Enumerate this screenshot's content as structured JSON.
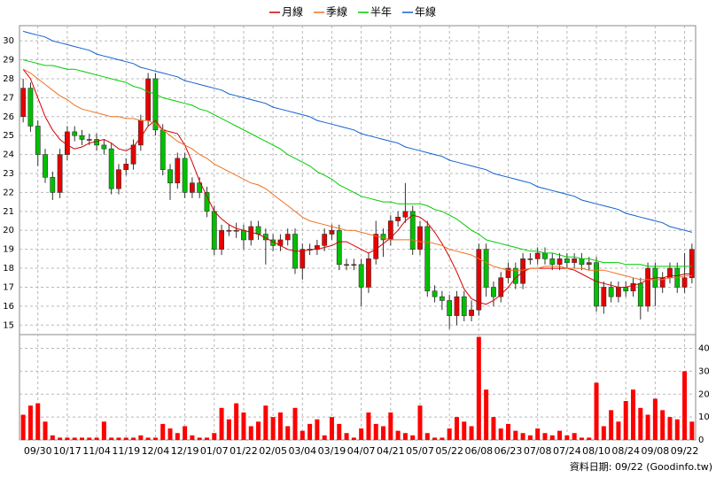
{
  "chart_data": {
    "type": "candlestick",
    "categories": [
      null,
      null,
      "09/30",
      null,
      null,
      null,
      "10/17",
      null,
      null,
      null,
      "11/04",
      null,
      null,
      null,
      "11/19",
      null,
      null,
      null,
      "12/04",
      null,
      null,
      null,
      "12/19",
      null,
      null,
      null,
      "01/07",
      null,
      null,
      null,
      "01/22",
      null,
      null,
      null,
      "02/05",
      null,
      null,
      null,
      "03/04",
      null,
      null,
      null,
      "03/19",
      null,
      null,
      null,
      "04/07",
      null,
      null,
      null,
      "04/21",
      null,
      null,
      null,
      "05/07",
      null,
      null,
      null,
      "05/22",
      null,
      null,
      null,
      "06/08",
      null,
      null,
      null,
      "06/23",
      null,
      null,
      null,
      "07/08",
      null,
      null,
      null,
      "07/24",
      null,
      null,
      null,
      "08/10",
      null,
      null,
      null,
      "08/24",
      null,
      null,
      null,
      "09/08",
      null,
      null,
      null,
      "09/22",
      null
    ],
    "open": [
      26.0,
      27.5,
      25.5,
      24.0,
      22.8,
      22.0,
      24.0,
      25.2,
      25.0,
      24.8,
      24.8,
      24.5,
      24.3,
      22.2,
      23.2,
      23.5,
      24.5,
      25.8,
      28.0,
      25.3,
      23.2,
      22.5,
      23.8,
      22.0,
      22.5,
      22.0,
      21.0,
      19.0,
      20.0,
      20.0,
      20.0,
      19.5,
      20.2,
      19.8,
      19.5,
      19.2,
      19.5,
      19.8,
      18.0,
      19.0,
      19.0,
      19.2,
      19.8,
      20.0,
      18.2,
      18.2,
      18.2,
      17.0,
      18.5,
      19.8,
      19.5,
      20.5,
      20.7,
      21.0,
      19.0,
      20.2,
      16.8,
      16.5,
      16.3,
      15.5,
      16.5,
      15.5,
      15.8,
      19.0,
      17.0,
      16.5,
      17.5,
      18.0,
      17.2,
      18.5,
      18.5,
      18.8,
      18.5,
      18.2,
      18.5,
      18.3,
      18.5,
      18.2,
      18.3,
      16.0,
      17.0,
      16.5,
      17.0,
      16.8,
      17.2,
      16.0,
      18.0,
      17.0,
      17.5,
      18.0,
      17.0,
      17.5
    ],
    "high": [
      28.0,
      27.8,
      25.8,
      24.3,
      23.1,
      24.3,
      25.5,
      25.5,
      25.3,
      25.1,
      25.1,
      24.8,
      24.6,
      23.5,
      23.8,
      24.8,
      26.1,
      28.3,
      28.3,
      25.6,
      23.5,
      24.1,
      24.1,
      22.8,
      22.8,
      22.3,
      21.3,
      20.3,
      20.3,
      20.4,
      20.3,
      20.5,
      20.5,
      20.1,
      19.8,
      19.8,
      20.1,
      20.1,
      19.3,
      19.3,
      19.5,
      20.1,
      20.3,
      20.3,
      18.5,
      18.5,
      18.5,
      18.8,
      20.5,
      20.1,
      20.8,
      21.0,
      22.5,
      21.3,
      20.5,
      20.5,
      17.1,
      16.8,
      16.6,
      16.8,
      16.8,
      16.3,
      19.3,
      19.3,
      17.3,
      17.8,
      18.3,
      18.3,
      18.8,
      18.8,
      19.1,
      19.1,
      18.8,
      18.8,
      18.8,
      18.8,
      18.8,
      18.6,
      18.6,
      17.3,
      17.3,
      17.3,
      17.3,
      17.5,
      17.5,
      18.3,
      18.3,
      17.8,
      18.3,
      18.3,
      18.8,
      19.3
    ],
    "low": [
      25.7,
      25.2,
      23.4,
      22.5,
      21.6,
      21.7,
      23.7,
      24.7,
      24.5,
      24.5,
      24.2,
      24.0,
      21.9,
      21.9,
      22.9,
      23.2,
      24.2,
      25.5,
      25.0,
      22.9,
      21.6,
      22.2,
      21.7,
      21.7,
      21.7,
      20.7,
      18.7,
      18.7,
      19.7,
      19.6,
      19.0,
      19.2,
      19.5,
      18.2,
      18.9,
      18.9,
      19.2,
      17.7,
      17.4,
      18.7,
      18.7,
      18.9,
      19.5,
      17.9,
      17.9,
      17.9,
      16.0,
      16.7,
      18.2,
      18.6,
      19.2,
      20.2,
      20.4,
      18.7,
      18.7,
      16.5,
      16.2,
      15.8,
      14.8,
      15.0,
      15.2,
      15.2,
      15.5,
      16.5,
      16.0,
      16.2,
      17.2,
      16.9,
      16.9,
      18.2,
      18.2,
      18.2,
      17.9,
      17.9,
      18.0,
      18.0,
      17.9,
      17.9,
      15.7,
      15.6,
      16.2,
      16.2,
      16.5,
      16.5,
      15.3,
      15.7,
      16.0,
      16.7,
      17.2,
      16.7,
      16.7,
      17.2
    ],
    "close": [
      27.5,
      25.5,
      24.0,
      22.8,
      22.0,
      24.0,
      25.2,
      25.0,
      24.8,
      24.8,
      24.5,
      24.3,
      22.2,
      23.2,
      23.5,
      24.5,
      25.8,
      28.0,
      25.3,
      23.2,
      22.5,
      23.8,
      22.0,
      22.5,
      22.0,
      21.0,
      19.0,
      20.0,
      20.0,
      20.0,
      19.5,
      20.2,
      19.8,
      19.5,
      19.2,
      19.5,
      19.8,
      18.0,
      19.0,
      19.0,
      19.2,
      19.8,
      20.0,
      18.2,
      18.2,
      18.2,
      17.0,
      18.5,
      19.8,
      19.5,
      20.5,
      20.7,
      21.0,
      19.0,
      20.2,
      16.8,
      16.5,
      16.3,
      15.5,
      16.5,
      15.5,
      15.8,
      19.0,
      17.0,
      16.5,
      17.5,
      18.0,
      17.2,
      18.5,
      18.5,
      18.8,
      18.5,
      18.2,
      18.5,
      18.3,
      18.5,
      18.2,
      18.3,
      16.0,
      17.0,
      16.5,
      17.0,
      16.8,
      17.2,
      16.0,
      18.0,
      17.0,
      17.5,
      18.0,
      17.0,
      17.5,
      19.0
    ],
    "up_color": "#e80000",
    "down_color": "#00c000",
    "ylim": [
      14.5,
      30.8
    ],
    "yticks": [
      15,
      16,
      17,
      18,
      19,
      20,
      21,
      22,
      23,
      24,
      25,
      26,
      27,
      28,
      29,
      30
    ],
    "grid": true,
    "legend": "top",
    "series": [
      {
        "name": "月線",
        "color": "#d40000",
        "values": [
          28.5,
          28.0,
          27.0,
          26.0,
          25.3,
          24.8,
          24.5,
          24.3,
          24.4,
          24.6,
          24.7,
          24.8,
          24.6,
          24.3,
          24.2,
          24.4,
          24.9,
          25.5,
          25.8,
          25.3,
          25.2,
          25.1,
          24.5,
          23.6,
          22.6,
          21.8,
          21.0,
          20.6,
          20.3,
          20.1,
          20.0,
          19.9,
          19.8,
          19.6,
          19.4,
          19.2,
          19.0,
          18.9,
          18.9,
          19.0,
          19.0,
          19.1,
          19.2,
          19.4,
          19.4,
          19.2,
          19.0,
          18.8,
          19.0,
          19.3,
          19.6,
          20.0,
          20.5,
          20.8,
          20.7,
          20.4,
          19.9,
          19.3,
          18.6,
          17.8,
          16.9,
          16.4,
          16.2,
          16.1,
          16.3,
          16.6,
          17.0,
          17.5,
          17.8,
          18.0,
          18.0,
          18.0,
          18.0,
          18.0,
          18.0,
          17.9,
          17.7,
          17.5,
          17.3,
          17.2,
          17.1,
          17.0,
          17.0,
          17.1,
          17.2,
          17.4,
          17.5,
          17.5,
          17.6,
          17.6,
          17.7,
          17.7
        ]
      },
      {
        "name": "季線",
        "color": "#f07020",
        "values": [
          28.5,
          28.3,
          28.0,
          27.7,
          27.4,
          27.1,
          26.9,
          26.6,
          26.4,
          26.3,
          26.2,
          26.1,
          26.0,
          26.0,
          25.9,
          25.9,
          25.8,
          25.8,
          25.6,
          25.3,
          25.0,
          24.7,
          24.5,
          24.3,
          24.0,
          23.8,
          23.5,
          23.3,
          23.1,
          22.9,
          22.7,
          22.5,
          22.4,
          22.2,
          21.9,
          21.6,
          21.3,
          21.0,
          20.7,
          20.5,
          20.4,
          20.3,
          20.2,
          20.1,
          20.0,
          20.0,
          19.9,
          19.8,
          19.7,
          19.6,
          19.5,
          19.5,
          19.5,
          19.5,
          19.4,
          19.4,
          19.3,
          19.2,
          19.0,
          18.9,
          18.8,
          18.7,
          18.5,
          18.3,
          18.1,
          18.0,
          17.9,
          17.9,
          17.9,
          18.0,
          18.0,
          18.1,
          18.1,
          18.1,
          18.0,
          18.0,
          18.0,
          17.9,
          17.9,
          17.9,
          17.8,
          17.7,
          17.6,
          17.5,
          17.4,
          17.4,
          17.4,
          17.4,
          17.5,
          17.5,
          17.6,
          17.6
        ]
      },
      {
        "name": "半年",
        "color": "#00cc00",
        "values": [
          29.0,
          28.9,
          28.8,
          28.7,
          28.7,
          28.6,
          28.5,
          28.5,
          28.4,
          28.3,
          28.2,
          28.1,
          28.0,
          27.9,
          27.8,
          27.6,
          27.5,
          27.3,
          27.2,
          27.0,
          26.9,
          26.8,
          26.7,
          26.6,
          26.4,
          26.3,
          26.1,
          25.9,
          25.7,
          25.5,
          25.3,
          25.1,
          24.9,
          24.7,
          24.5,
          24.3,
          24.0,
          23.8,
          23.6,
          23.4,
          23.1,
          22.9,
          22.7,
          22.4,
          22.2,
          22.0,
          21.8,
          21.7,
          21.6,
          21.5,
          21.5,
          21.4,
          21.4,
          21.4,
          21.4,
          21.3,
          21.1,
          21.0,
          20.8,
          20.6,
          20.3,
          20.0,
          19.8,
          19.5,
          19.4,
          19.3,
          19.2,
          19.1,
          19.0,
          18.9,
          18.9,
          18.8,
          18.8,
          18.7,
          18.6,
          18.6,
          18.5,
          18.5,
          18.4,
          18.3,
          18.3,
          18.3,
          18.2,
          18.2,
          18.2,
          18.1,
          18.1,
          18.1,
          18.1,
          18.1,
          18.1,
          18.1
        ]
      },
      {
        "name": "年線",
        "color": "#1060d0",
        "values": [
          30.5,
          30.4,
          30.3,
          30.2,
          30.0,
          29.9,
          29.8,
          29.7,
          29.6,
          29.5,
          29.3,
          29.2,
          29.1,
          29.0,
          28.9,
          28.8,
          28.6,
          28.5,
          28.4,
          28.3,
          28.2,
          28.1,
          27.9,
          27.8,
          27.7,
          27.6,
          27.5,
          27.4,
          27.2,
          27.1,
          27.0,
          26.9,
          26.8,
          26.7,
          26.5,
          26.4,
          26.3,
          26.2,
          26.1,
          26.0,
          25.8,
          25.7,
          25.6,
          25.5,
          25.4,
          25.3,
          25.1,
          25.0,
          24.9,
          24.8,
          24.7,
          24.6,
          24.4,
          24.3,
          24.2,
          24.1,
          24.0,
          23.9,
          23.7,
          23.6,
          23.5,
          23.4,
          23.3,
          23.2,
          23.0,
          22.9,
          22.8,
          22.7,
          22.6,
          22.5,
          22.3,
          22.2,
          22.1,
          22.0,
          21.9,
          21.8,
          21.6,
          21.5,
          21.4,
          21.3,
          21.2,
          21.1,
          20.9,
          20.8,
          20.7,
          20.6,
          20.5,
          20.4,
          20.2,
          20.1,
          20.0,
          19.9
        ]
      }
    ],
    "volume": {
      "color": "#ff0000",
      "ylim": [
        0,
        46
      ],
      "yticks": [
        0,
        10,
        20,
        30,
        40
      ],
      "values": [
        11,
        15,
        16,
        8,
        2,
        1,
        1,
        1,
        1,
        1,
        1,
        8,
        1,
        1,
        1,
        1,
        2,
        1,
        1,
        7,
        5,
        3,
        6,
        2,
        1,
        1,
        3,
        14,
        9,
        16,
        12,
        6,
        8,
        15,
        10,
        12,
        6,
        14,
        4,
        7,
        9,
        2,
        10,
        7,
        3,
        1,
        5,
        12,
        7,
        6,
        12,
        4,
        3,
        2,
        15,
        3,
        1,
        1,
        5,
        10,
        8,
        6,
        45,
        22,
        10,
        5,
        7,
        4,
        3,
        2,
        5,
        3,
        2,
        4,
        2,
        3,
        1,
        1,
        25,
        6,
        13,
        8,
        17,
        22,
        14,
        11,
        18,
        13,
        10,
        9,
        30,
        8
      ]
    },
    "footer": "資料日期: 09/22 (Goodinfo.tw)"
  }
}
